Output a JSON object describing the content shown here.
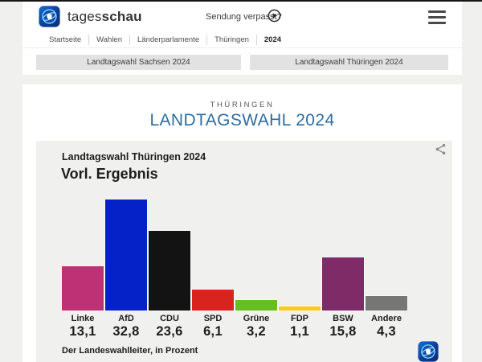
{
  "theme": {
    "page_bg": "#f0f0ef",
    "surface": "#ffffff",
    "top_line": "#161616",
    "title_blue": "#2e6da3",
    "tab_bg": "#e2e2e2",
    "card_bg": "#f0f0ee",
    "brand_blue": "#0b3f9a"
  },
  "header": {
    "brand_regular": "tages",
    "brand_bold": "schau",
    "sendung_verpasst": "Sendung verpasst?",
    "breadcrumb": [
      "Startseite",
      "Wahlen",
      "Länderparlamente",
      "Thüringen",
      "2024"
    ]
  },
  "tabs": {
    "sachsen": "Landtagswahl Sachsen 2024",
    "thueringen": "Landtagswahl Thüringen 2024"
  },
  "page": {
    "kicker": "THÜRINGEN",
    "title": "LANDTAGSWAHL 2024"
  },
  "chart_data": {
    "type": "bar",
    "title": "Landtagswahl Thüringen 2024",
    "subtitle": "Vorl. Ergebnis",
    "categories": [
      "Linke",
      "AfD",
      "CDU",
      "SPD",
      "Grüne",
      "FDP",
      "BSW",
      "Andere"
    ],
    "values": [
      13.1,
      32.8,
      23.6,
      6.1,
      3.2,
      1.1,
      15.8,
      4.3
    ],
    "value_labels": [
      "13,1",
      "32,8",
      "23,6",
      "6,1",
      "3,2",
      "1,1",
      "15,8",
      "4,3"
    ],
    "colors": [
      "#bf3175",
      "#0522c8",
      "#131313",
      "#d8231f",
      "#67bd22",
      "#f9ce0b",
      "#7e2b68",
      "#767676"
    ],
    "ylabel": "Prozent",
    "ylim": [
      0,
      33
    ],
    "grid": false,
    "legend": "none",
    "source": "Der Landeswahlleiter, in Prozent"
  }
}
